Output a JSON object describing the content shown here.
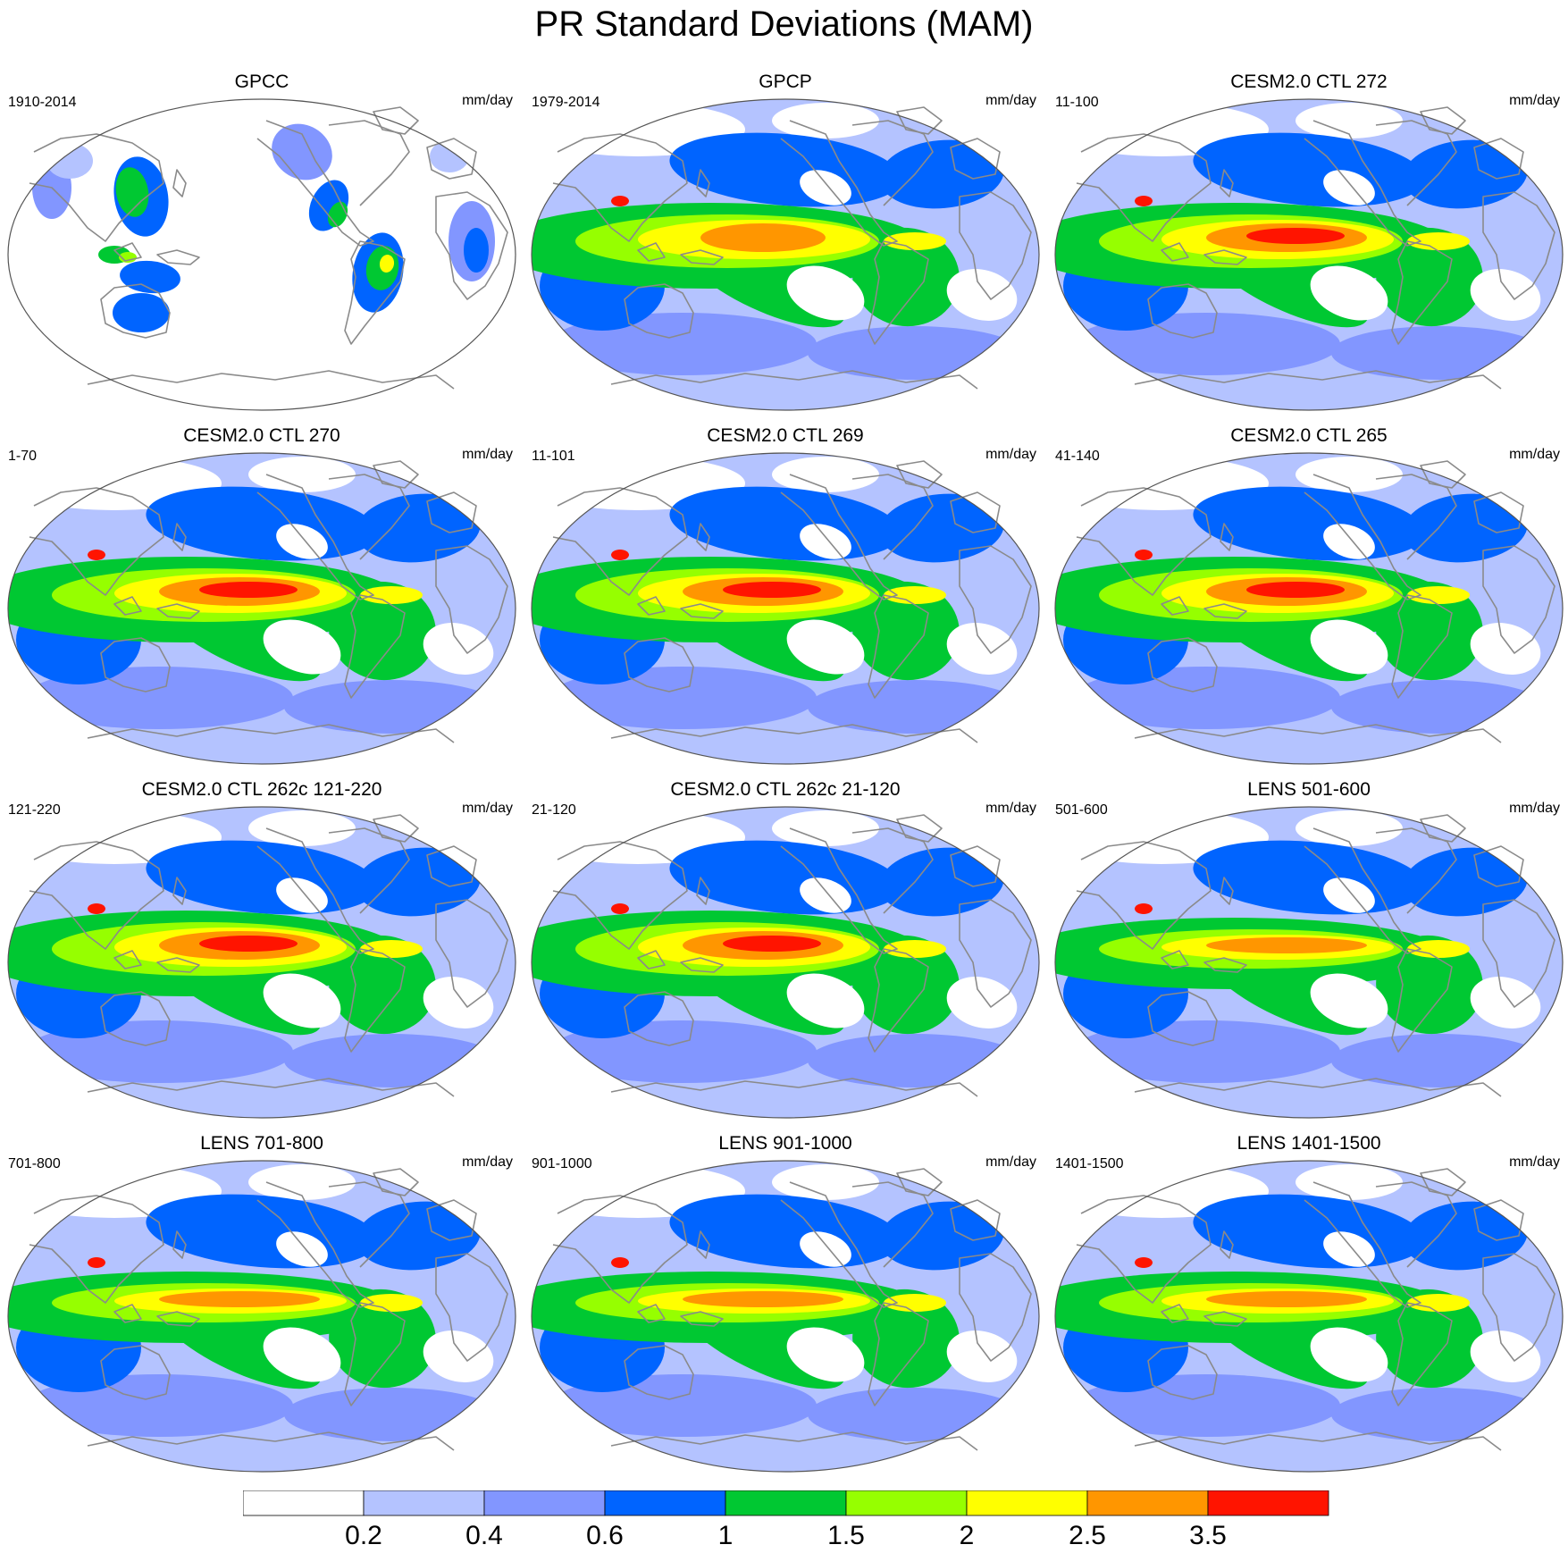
{
  "figure": {
    "title": "PR Standard Deviations (MAM)"
  },
  "panels": [
    {
      "title": "GPCC",
      "years": "1910-2014",
      "units": "mm/day",
      "style": "gpcc"
    },
    {
      "title": "GPCP",
      "years": "1979-2014",
      "units": "mm/day",
      "style": "obs"
    },
    {
      "title": "CESM2.0 CTL 272",
      "years": "11-100",
      "units": "mm/day",
      "style": "model"
    },
    {
      "title": "CESM2.0 CTL 270",
      "years": "1-70",
      "units": "mm/day",
      "style": "model"
    },
    {
      "title": "CESM2.0 CTL 269",
      "years": "11-101",
      "units": "mm/day",
      "style": "model"
    },
    {
      "title": "CESM2.0 CTL 265",
      "years": "41-140",
      "units": "mm/day",
      "style": "model"
    },
    {
      "title": "CESM2.0 CTL 262c 121-220",
      "years": "121-220",
      "units": "mm/day",
      "style": "model"
    },
    {
      "title": "CESM2.0 CTL 262c 21-120",
      "years": "21-120",
      "units": "mm/day",
      "style": "model"
    },
    {
      "title": "LENS 501-600",
      "years": "501-600",
      "units": "mm/day",
      "style": "lens"
    },
    {
      "title": "LENS 701-800",
      "years": "701-800",
      "units": "mm/day",
      "style": "lens"
    },
    {
      "title": "LENS 901-1000",
      "years": "901-1000",
      "units": "mm/day",
      "style": "lens"
    },
    {
      "title": "LENS 1401-1500",
      "years": "1401-1500",
      "units": "mm/day",
      "style": "lens"
    }
  ],
  "colorbar": {
    "colors": [
      "#ffffff",
      "#b4c3ff",
      "#8296ff",
      "#0064ff",
      "#00c832",
      "#96ff00",
      "#ffff00",
      "#ff9600",
      "#ff1400"
    ],
    "tick_labels": [
      "0.2",
      "0.4",
      "0.6",
      "1",
      "1.5",
      "2",
      "2.5",
      "3.5"
    ]
  }
}
